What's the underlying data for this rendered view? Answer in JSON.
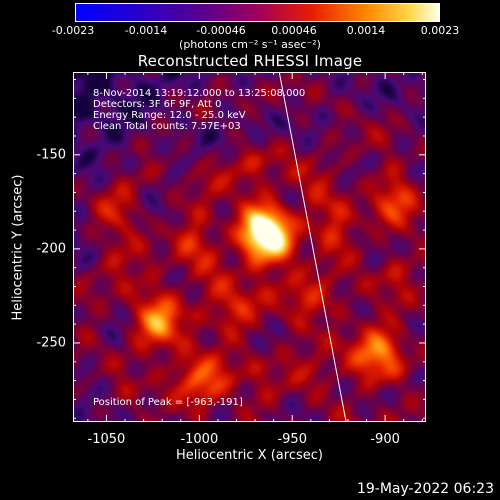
{
  "colorbar": {
    "ticks": [
      "-0.0023",
      "-0.0014",
      "-0.00046",
      "0.00046",
      "0.0014",
      "0.0023"
    ],
    "unit_label": "(photons cm⁻² s⁻¹ asec⁻²)",
    "range": [
      -0.0023,
      0.0023
    ]
  },
  "chart_data": {
    "type": "heatmap",
    "title": "Reconstructed RHESSI Image",
    "xlabel": "Heliocentric X (arcsec)",
    "ylabel": "Heliocentric Y (arcsec)",
    "xlim": [
      -1068,
      -878
    ],
    "ylim": [
      -292,
      -106
    ],
    "xticks": [
      -1050,
      -1000,
      -950,
      -900
    ],
    "yticks": [
      -150,
      -200,
      -250
    ],
    "grid": false,
    "limb_line": [
      [
        -957,
        -106
      ],
      [
        -921,
        -292
      ]
    ],
    "peak": {
      "x": -963,
      "y": -191
    },
    "sources": [
      {
        "x": -964,
        "y": -191,
        "strength": 1.0
      },
      {
        "x": -903,
        "y": -258,
        "strength": 0.55
      },
      {
        "x": -1022,
        "y": -236,
        "strength": 0.45
      },
      {
        "x": -1000,
        "y": -273,
        "strength": 0.4
      },
      {
        "x": -898,
        "y": -174,
        "strength": 0.35
      },
      {
        "x": -1047,
        "y": -180,
        "strength": 0.3
      }
    ],
    "annotations": [
      "8-Nov-2014 13:19:12.000 to 13:25:08.000",
      "Detectors: 3F 6F 9F, Att 0",
      "Energy Range: 12.0 - 25.0 keV",
      "Clean    Total counts: 7.57E+03"
    ],
    "peak_label": "Position of Peak = [-963,-191]"
  },
  "footer": {
    "timestamp": "19-May-2022 06:23"
  }
}
